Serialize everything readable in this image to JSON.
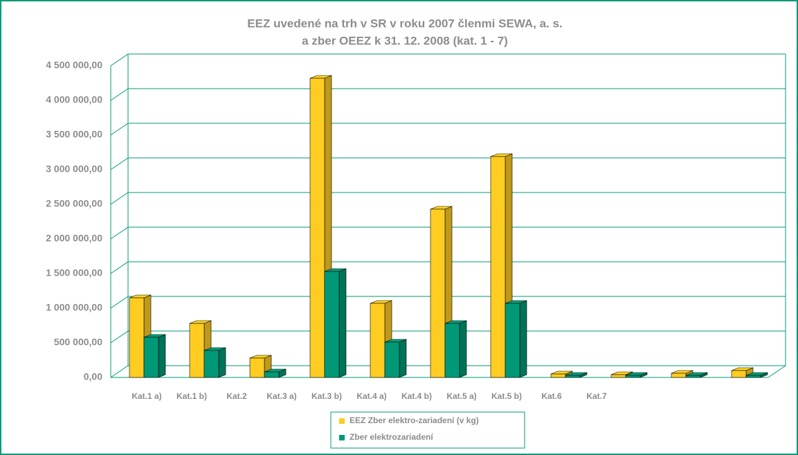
{
  "chart_data": {
    "type": "bar3d",
    "title": [
      "EEZ uvedené na trh v SR v roku 2007 členmi SEWA, a. s.",
      "a zber OEEZ k 31. 12. 2008 (kat. 1 - 7)"
    ],
    "categories": [
      "Kat.1 a)",
      "Kat.1 b)",
      "Kat.2",
      "Kat.3 a)",
      "Kat.3 b)",
      "Kat.4 a)",
      "Kat.4 b)",
      "Kat.5 a)",
      "Kat.5 b)",
      "Kat.6",
      "Kat.7"
    ],
    "series": [
      {
        "name": "EEZ Zber elektro-zariadení  (v kg)",
        "color": "#ffcc22",
        "values": [
          1150000,
          780000,
          280000,
          4320000,
          1070000,
          2430000,
          3190000,
          50000,
          40000,
          60000,
          100000
        ]
      },
      {
        "name": "Zber elektrozariadení",
        "color": "#009977",
        "values": [
          580000,
          390000,
          80000,
          1530000,
          510000,
          780000,
          1070000,
          30000,
          30000,
          30000,
          30000
        ]
      }
    ],
    "ylim": [
      0,
      4500000
    ],
    "yticks": [
      {
        "value": 0,
        "label": "0,00"
      },
      {
        "value": 500000,
        "label": "500 000,00"
      },
      {
        "value": 1000000,
        "label": "1 000 000,00"
      },
      {
        "value": 1500000,
        "label": "1 500 000,00"
      },
      {
        "value": 2000000,
        "label": "2 000 000,00"
      },
      {
        "value": 2500000,
        "label": "2 500 000,00"
      },
      {
        "value": 3000000,
        "label": "3 000 000,00"
      },
      {
        "value": 3500000,
        "label": "3 500 000,00"
      },
      {
        "value": 4000000,
        "label": "4 000 000,00"
      },
      {
        "value": 4500000,
        "label": "4 500 000,00"
      }
    ],
    "grid": true
  }
}
